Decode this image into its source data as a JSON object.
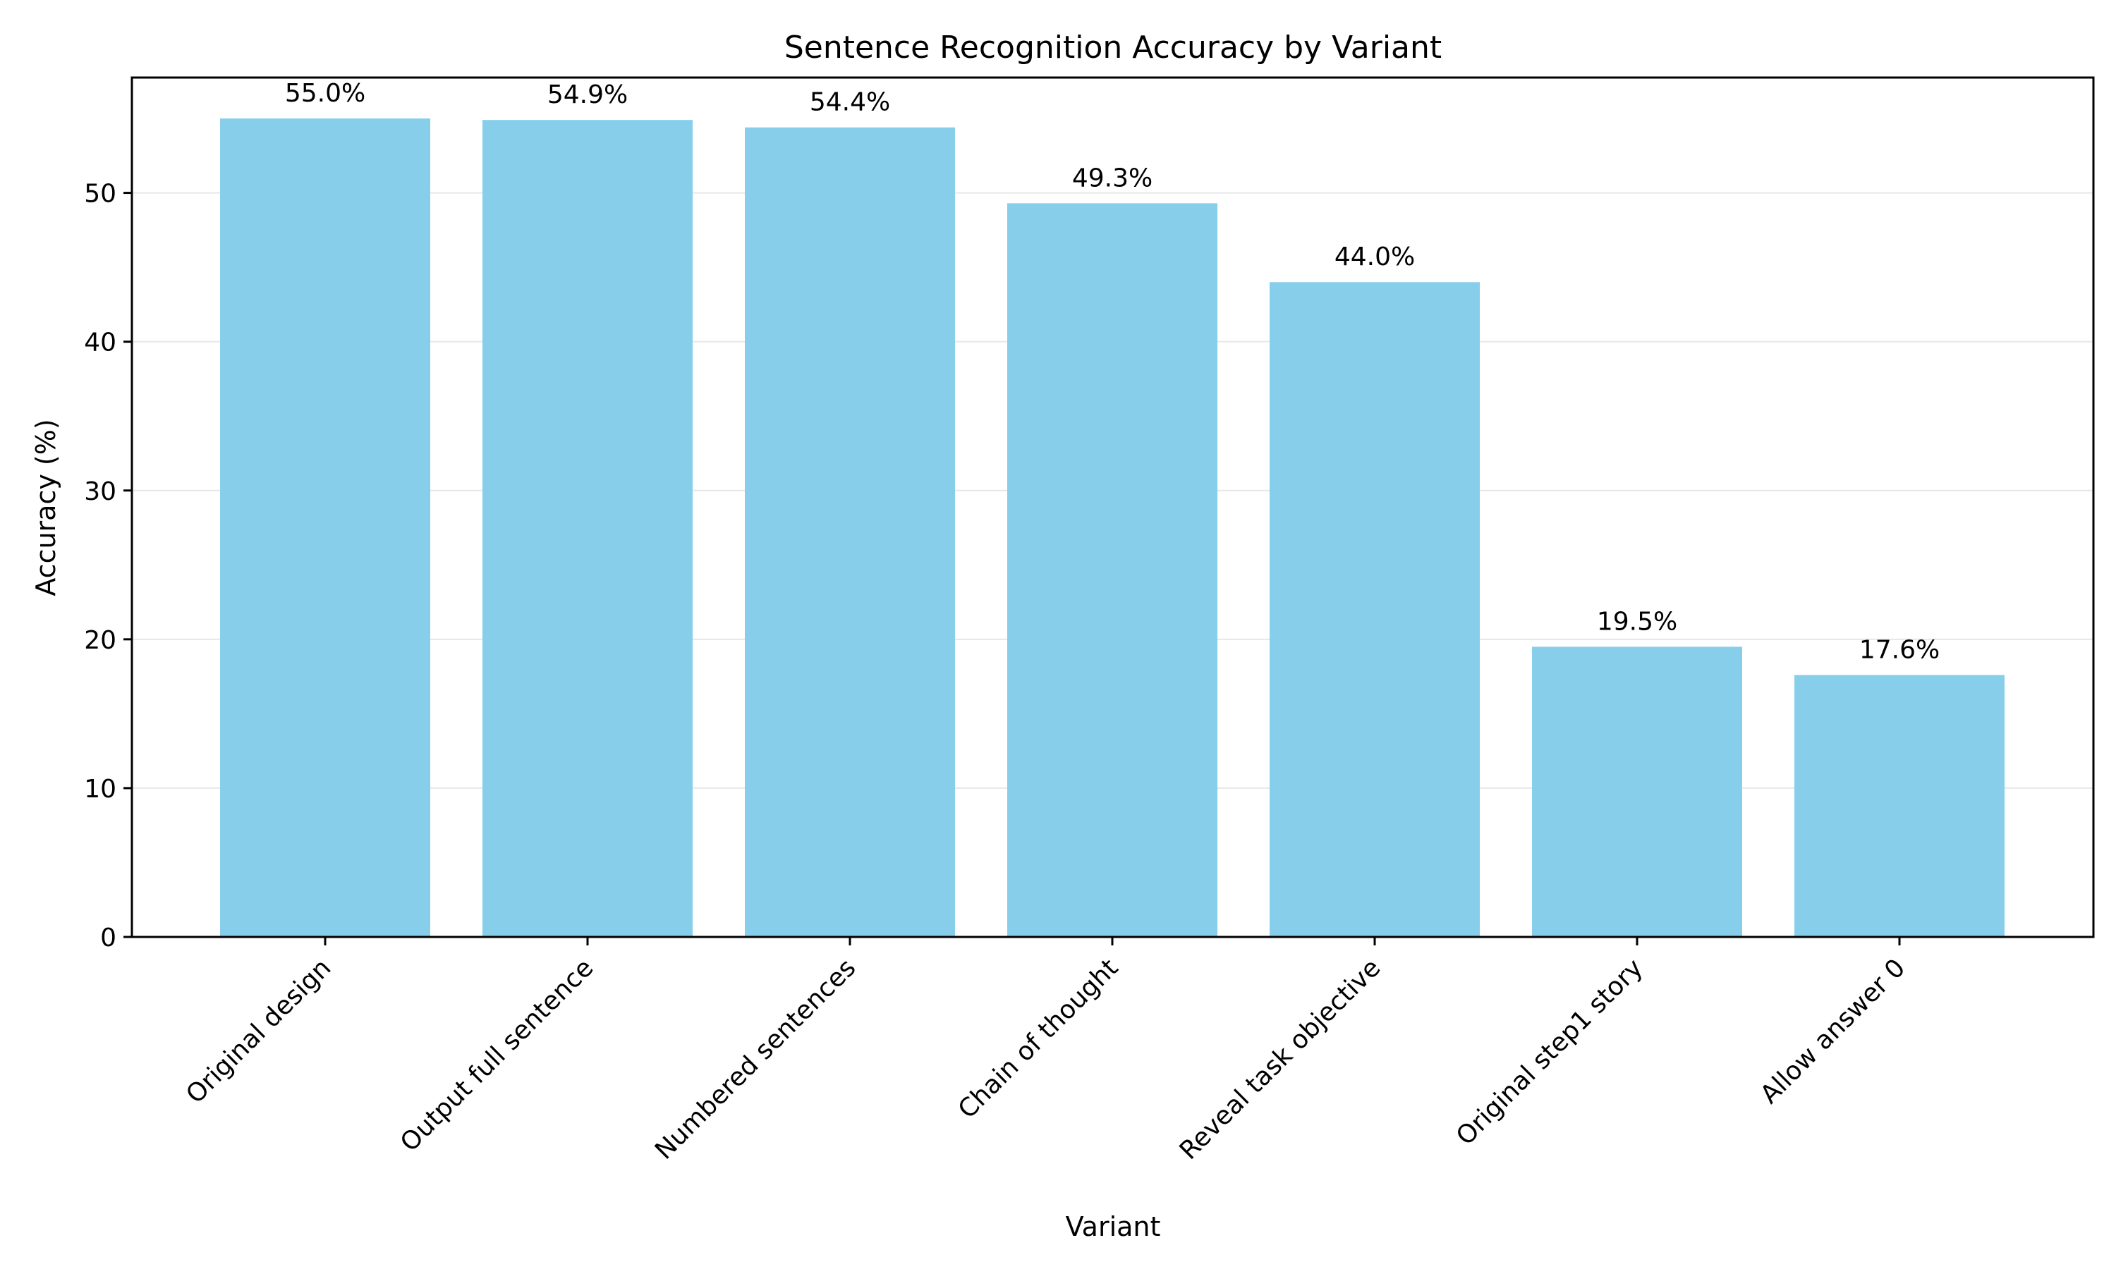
{
  "chart_data": {
    "type": "bar",
    "title": "Sentence Recognition Accuracy by Variant",
    "xlabel": "Variant",
    "ylabel": "Accuracy (%)",
    "categories": [
      "Original design",
      "Output full sentence",
      "Numbered sentences",
      "Chain of thought",
      "Reveal task objective",
      "Original step1 story",
      "Allow answer 0"
    ],
    "values": [
      55.0,
      54.9,
      54.4,
      49.3,
      44.0,
      19.5,
      17.6
    ],
    "data_labels": [
      "55.0%",
      "54.9%",
      "54.4%",
      "49.3%",
      "44.0%",
      "19.5%",
      "17.6%"
    ],
    "yticks": [
      0,
      10,
      20,
      30,
      40,
      50
    ],
    "ytick_labels": [
      "0",
      "10",
      "20",
      "30",
      "40",
      "50"
    ],
    "ylim": [
      0,
      57.75
    ],
    "grid": "y-axis only",
    "bar_color": "#87CEEB"
  }
}
